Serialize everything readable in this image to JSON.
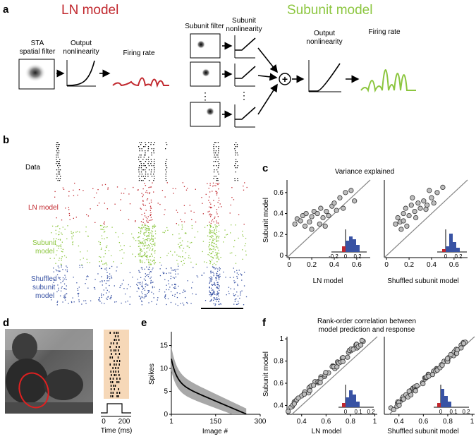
{
  "panels": {
    "a": "a",
    "b": "b",
    "c": "c",
    "d": "d",
    "e": "e",
    "f": "f"
  },
  "colors": {
    "ln": "#c1272d",
    "subunit": "#8cc63f",
    "shuffled": "#3953a4",
    "data": "#000000",
    "hist_blue": "#3953a4",
    "hist_red": "#c1272d"
  },
  "a": {
    "ln_title": "LN model",
    "subunit_title": "Subunit model",
    "sta_label": [
      "STA",
      "spatial filter"
    ],
    "output_nl_label": [
      "Output",
      "nonlinearity"
    ],
    "firing_rate_label": "Firing rate",
    "subunit_filter_label": "Subunit filter",
    "subunit_nl_label": [
      "Subunit",
      "nonlinearity"
    ],
    "output_nl_label2": [
      "Output",
      "nonlinearity"
    ],
    "firing_rate_label2": "Firing rate",
    "sum_symbol": "+",
    "dots": "⋮"
  },
  "b": {
    "rows": [
      "Data",
      "LN model",
      "Subunit",
      "model",
      "Shuffled",
      "subunit",
      "model"
    ]
  },
  "c": {
    "title": "Variance explained",
    "ylabel": "Subunit model",
    "xlabel_left": "LN model",
    "xlabel_right": "Shuffled subunit model",
    "ticks": [
      "0",
      "0.2",
      "0.4",
      "0.6"
    ],
    "inset_ticks_left": [
      "-0.2",
      "0",
      "0.2"
    ],
    "inset_ticks_right": [
      "0",
      "0.2"
    ]
  },
  "d": {
    "time_label": "Time (ms)",
    "tick0": "0",
    "tick1": "200"
  },
  "e": {
    "ylabel": "Spikes",
    "xlabel": "Image #",
    "yticks": [
      "0",
      "5",
      "10",
      "15"
    ],
    "xticks": [
      "1",
      "150",
      "300"
    ]
  },
  "f": {
    "title": [
      "Rank-order correlation between",
      "model prediction and response"
    ],
    "ylabel": "Subunit model",
    "xlabel_left": "LN model",
    "xlabel_right": "Shuffled subunit model",
    "xticks": [
      "0.4",
      "0.6",
      "0.8",
      "1"
    ],
    "yticks": [
      "0.4",
      "0.6",
      "0.8",
      "1"
    ],
    "inset_ticks_left": [
      "0",
      "0.1",
      "0.2"
    ],
    "inset_ticks_right": [
      "0",
      "0.1",
      "0.2"
    ]
  }
}
